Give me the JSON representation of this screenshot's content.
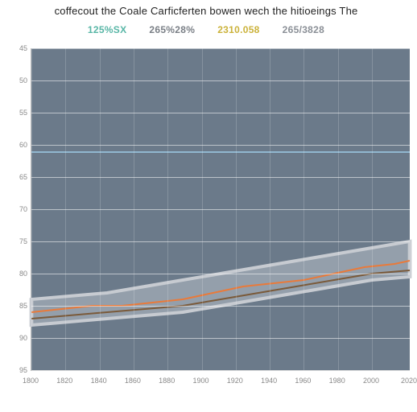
{
  "title": "coffecout the Coale Carficferten bowen wech the hitioeings The",
  "legend": [
    {
      "label": "125%SX",
      "color": "#58b6a6"
    },
    {
      "label": "265%28%",
      "color": "#7a7f86"
    },
    {
      "label": "2310.058",
      "color": "#cbb23a"
    },
    {
      "label": "265/3828",
      "color": "#8a8f96"
    }
  ],
  "chart": {
    "type": "line",
    "background_color": "#6b7a8a",
    "grid_color": "rgba(255,255,255,.55)",
    "vgrid_color": "rgba(255,255,255,.18)",
    "xlim": [
      0,
      100
    ],
    "ylim": [
      0,
      100
    ],
    "y_ticks": [
      0,
      10,
      20,
      30,
      40,
      50,
      60,
      70,
      80,
      90,
      100
    ],
    "y_tick_labels": [
      "95",
      "90",
      "85",
      "80",
      "75",
      "70",
      "65",
      "60",
      "55",
      "50",
      "45"
    ],
    "bold_hline_at": 68,
    "x_ticks": [
      0,
      9,
      18,
      27,
      36,
      45,
      54,
      63,
      72,
      81,
      90,
      100
    ],
    "x_tick_labels": [
      "1800",
      "1820",
      "1840",
      "1860",
      "1880",
      "1900",
      "1920",
      "1940",
      "1960",
      "1980",
      "2000",
      "2020"
    ],
    "series": {
      "orange": {
        "color": "#e97a3a",
        "width": 2,
        "points": [
          [
            0,
            18
          ],
          [
            8,
            19
          ],
          [
            16,
            20
          ],
          [
            24,
            20
          ],
          [
            32,
            21
          ],
          [
            40,
            22
          ],
          [
            48,
            24
          ],
          [
            56,
            26
          ],
          [
            64,
            27
          ],
          [
            72,
            28
          ],
          [
            80,
            30
          ],
          [
            88,
            32
          ],
          [
            96,
            33
          ],
          [
            100,
            34
          ]
        ]
      },
      "brown": {
        "color": "#7a5a3a",
        "width": 2,
        "points": [
          [
            0,
            16
          ],
          [
            10,
            17
          ],
          [
            20,
            18
          ],
          [
            30,
            19
          ],
          [
            40,
            20
          ],
          [
            50,
            22
          ],
          [
            60,
            24
          ],
          [
            70,
            26
          ],
          [
            80,
            28
          ],
          [
            90,
            30
          ],
          [
            100,
            31
          ]
        ]
      },
      "band": {
        "lower": [
          [
            0,
            14
          ],
          [
            10,
            15
          ],
          [
            20,
            16
          ],
          [
            30,
            17
          ],
          [
            40,
            18
          ],
          [
            50,
            20
          ],
          [
            60,
            22
          ],
          [
            70,
            24
          ],
          [
            80,
            26
          ],
          [
            90,
            28
          ],
          [
            100,
            29
          ]
        ],
        "upper": [
          [
            0,
            22
          ],
          [
            10,
            23
          ],
          [
            20,
            24
          ],
          [
            30,
            26
          ],
          [
            40,
            28
          ],
          [
            50,
            30
          ],
          [
            60,
            32
          ],
          [
            70,
            34
          ],
          [
            80,
            36
          ],
          [
            90,
            38
          ],
          [
            100,
            40
          ]
        ],
        "fill": "rgba(225,228,232,.35)",
        "stroke": "#c7cbd1"
      }
    }
  }
}
